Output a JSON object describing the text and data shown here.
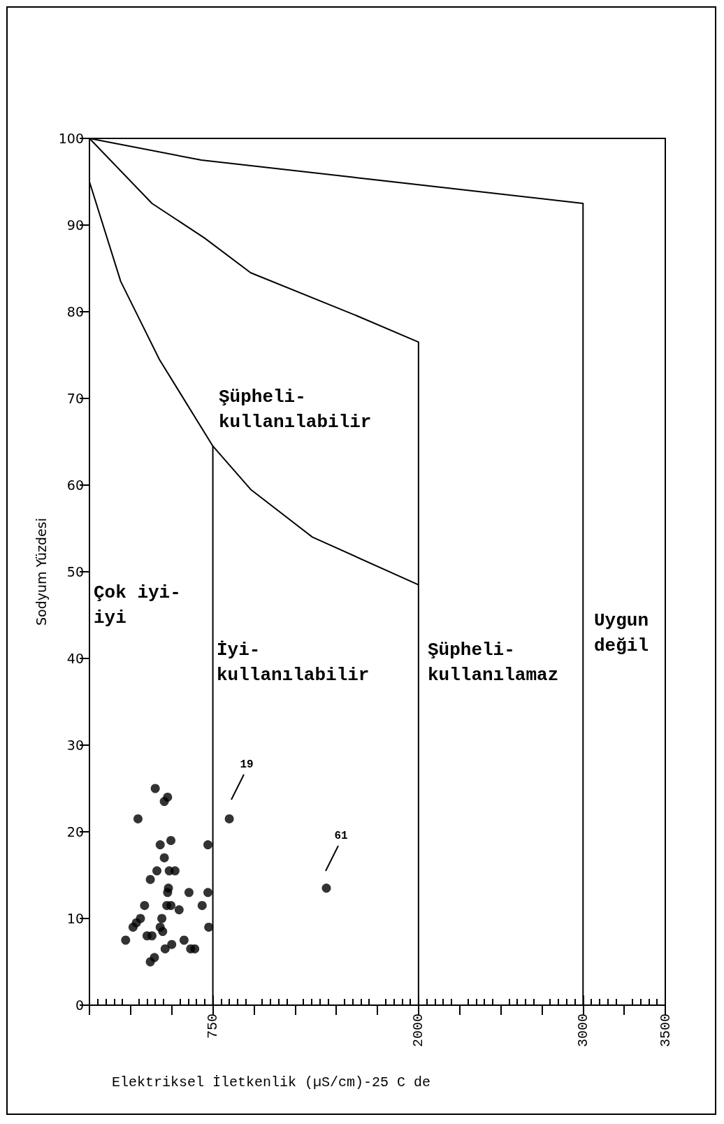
{
  "chart_data": {
    "type": "scatter",
    "xlabel": "Elektriksel İletkenlik (µS/cm)-25 C de",
    "ylabel": "Sodyum Yüzdesi",
    "xlim": [
      0,
      3500
    ],
    "xticks": [
      750,
      2000,
      3000,
      3500
    ],
    "ylim": [
      0,
      100
    ],
    "yticks": [
      0,
      10,
      20,
      30,
      40,
      50,
      60,
      70,
      80,
      90,
      100
    ],
    "grid": false,
    "series": [
      {
        "color": "#000000",
        "x": [
          220,
          265,
          285,
          310,
          295,
          335,
          350,
          380,
          370,
          370,
          395,
          400,
          410,
          430,
          430,
          440,
          445,
          455,
          460,
          470,
          475,
          480,
          485,
          495,
          495,
          500,
          520,
          545,
          575,
          605,
          615,
          640,
          685,
          720,
          720,
          725,
          455,
          475,
          850,
          1440
        ],
        "values": [
          7.5,
          9,
          9.5,
          10,
          21.5,
          11.5,
          8,
          8,
          14.5,
          5,
          5.5,
          25,
          15.5,
          18.5,
          9,
          10,
          8.5,
          23.5,
          6.5,
          11.5,
          24,
          13.5,
          15.5,
          19,
          11.5,
          7,
          15.5,
          11,
          7.5,
          13,
          6.5,
          6.5,
          11.5,
          18.5,
          13,
          9,
          17,
          13,
          21.5,
          13.5
        ]
      },
      {
        "type": "line",
        "color": "#000000",
        "x": [
          0,
          680,
          1610,
          3000,
          3000
        ],
        "values": [
          100,
          97.5,
          95.5,
          92.5,
          0
        ]
      },
      {
        "type": "line",
        "color": "#000000",
        "x": [
          0,
          380,
          700,
          980,
          1630,
          2000,
          2000
        ],
        "values": [
          100,
          92.5,
          88.5,
          84.5,
          79.5,
          76.5,
          0
        ]
      },
      {
        "type": "line",
        "color": "#000000",
        "x": [
          0,
          190,
          425,
          750,
          980,
          1355,
          2000
        ],
        "values": [
          95,
          83.5,
          74.5,
          64.5,
          59.5,
          54,
          48.5
        ]
      },
      {
        "type": "line",
        "color": "#000000",
        "x": [
          750,
          750
        ],
        "values": [
          64.5,
          0
        ]
      }
    ],
    "annotations": [
      "Çok iyi-\niyi",
      "Şüpheli-\nkullanılabilir",
      "İyi-\nkullanılabilir",
      "Şüpheli-\nkullanılamaz",
      "Uygun\ndeğil",
      "19",
      "61"
    ]
  }
}
